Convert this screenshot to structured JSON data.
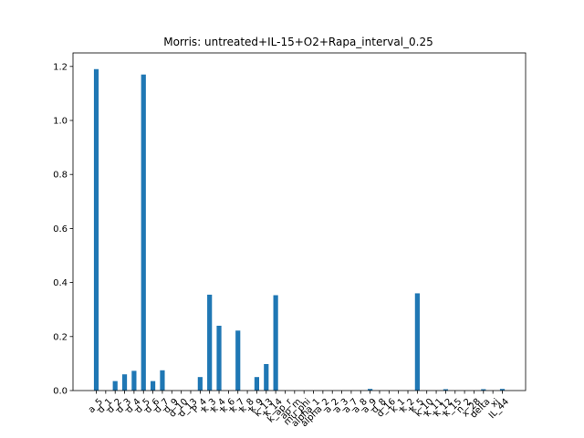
{
  "chart_data": {
    "type": "bar",
    "title": "Morris: untreated+IL-15+O2+Rapa_interval_0.25",
    "xlabel": "",
    "ylabel": "",
    "ylim": [
      0,
      1.25
    ],
    "yticks": [
      "0.0",
      "0.2",
      "0.4",
      "0.6",
      "0.8",
      "1.0",
      "1.2"
    ],
    "ytick_values": [
      0,
      0.2,
      0.4,
      0.6,
      0.8,
      1.0,
      1.2
    ],
    "grid": false,
    "categories": [
      "a_5",
      "d_1",
      "d_2",
      "d_3",
      "d_4",
      "d_5",
      "d_6",
      "d_7",
      "d_9",
      "d_10",
      "d_13",
      "P_4",
      "k_3",
      "k_4",
      "k_6",
      "k_7",
      "k_8",
      "k_9",
      "k_13",
      "k_14",
      "k_ap_r",
      "ap_m",
      "mu_phi",
      "alpha_1",
      "alpha_2",
      "a_2",
      "a_3",
      "a_7",
      "a_8",
      "a_9",
      "d_8",
      "d_16",
      "k_1",
      "k_2",
      "k_5",
      "k_10",
      "k_11",
      "k_12",
      "k_15",
      "n_2",
      "x_28",
      "delta",
      "xi",
      "IL_44"
    ],
    "values": [
      1.19,
      0,
      0.035,
      0.06,
      0.073,
      1.17,
      0.035,
      0.075,
      0,
      0,
      0,
      0.05,
      0.355,
      0.24,
      0,
      0.222,
      0,
      0.05,
      0.098,
      0.353,
      0,
      0,
      0,
      0,
      0,
      0,
      0,
      0,
      0,
      0.006,
      0,
      0,
      0,
      0,
      0.36,
      0,
      0,
      0.005,
      0,
      0,
      0,
      0.005,
      0,
      0.006
    ]
  }
}
